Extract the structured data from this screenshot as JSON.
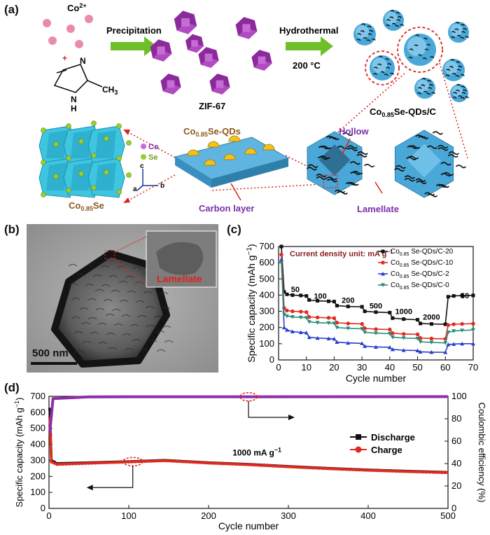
{
  "panel_a": {
    "label": "(a)",
    "co_ion": "Co2+",
    "co_base": "Co",
    "co_sup": "2+",
    "plus": "+",
    "ligand_N1": "N",
    "ligand_N2": "N",
    "ligand_H": "H",
    "ligand_CH3": "CH3",
    "ligand_CH": "CH",
    "ligand_3": "3",
    "step1": "Precipitation",
    "step2": "Hydrothermal",
    "step2_temp": "200 °C",
    "zif": "ZIF-67",
    "product_base": "Co",
    "product_sub": "0.85",
    "product_rest": "Se-QDs/C",
    "qd_base": "Co",
    "qd_sub": "0.85",
    "qd_rest": "Se-QDs",
    "hollow": "Hollow",
    "lamellate": "Lamellate",
    "carbon_layer": "Carbon layer",
    "legend_co": "Co",
    "legend_se": "Se",
    "axis_c": "c",
    "axis_a": "a",
    "axis_b": "b",
    "crystal_base": "Co",
    "crystal_sub": "0.85",
    "crystal_rest": "Se",
    "colors": {
      "purple": "#7a2fa8",
      "cyan": "#3aa7d6",
      "arrow_green": "#6fbf2a",
      "red": "#d9241b",
      "pink": "#e98bb0"
    }
  },
  "panel_b": {
    "label": "(b)",
    "inset_text": "Lamellate",
    "scale_bar": "500 nm"
  },
  "panel_c": {
    "label": "(c)",
    "annotation": "Current density unit: mA g−1",
    "annot_main": "Current density unit: mA g",
    "annot_sup": "−1",
    "rates": [
      "50",
      "100",
      "200",
      "500",
      "1000",
      "2000",
      "50"
    ],
    "legend": [
      "Co0.85 Se-QDs/C-20",
      "Co0.85 Se-QDs/C-10",
      "Co0.85 Se-QDs/C-2",
      "Co0.85 Se-QDs/C-0"
    ],
    "legend_base": "Co",
    "legend_sub": "0.85",
    "legend_rests": [
      " Se-QDs/C-20",
      " Se-QDs/C-10",
      " Se-QDs/C-2",
      " Se-QDs/C-0"
    ],
    "series_colors": [
      "#111111",
      "#e02a1f",
      "#2a3fc9",
      "#2a8c7a"
    ],
    "ylabel": "Specific capacity (mAh g−1)",
    "ylabel_main": "Specific capacity (mAh g",
    "ylabel_sup": "−1",
    "ylabel_end": ")",
    "xlabel": "Cycle number",
    "yticks": [
      "0",
      "100",
      "200",
      "300",
      "400",
      "500",
      "600",
      "700"
    ],
    "xticks": [
      "0",
      "10",
      "20",
      "30",
      "40",
      "50",
      "60",
      "70"
    ]
  },
  "panel_d": {
    "label": "(d)",
    "legend": [
      "Discharge",
      "Charge"
    ],
    "annotation": "1000 mA g−1",
    "annot_main": "1000 mA g",
    "annot_sup": "−1",
    "ylabel_left": "Specific capacity (mAh g−1)",
    "yl_main": "Specific capacity (mAh g",
    "yl_sup": "−1",
    "yl_end": ")",
    "ylabel_right": "Coulombic efficiency (%)",
    "xlabel": "Cycle number",
    "yticks_left": [
      "0",
      "100",
      "200",
      "300",
      "400",
      "500",
      "600",
      "700"
    ],
    "yticks_right": [
      "0",
      "20",
      "40",
      "60",
      "80",
      "100"
    ],
    "xticks": [
      "0",
      "100",
      "200",
      "300",
      "400",
      "500"
    ]
  },
  "chart_data": [
    {
      "type": "line",
      "panel": "c",
      "xlabel": "Cycle number",
      "ylabel": "Specific capacity (mAh g−1)",
      "xlim": [
        0,
        70
      ],
      "ylim": [
        0,
        700
      ],
      "annotation": "Current density unit: mA g−1",
      "rate_labels": [
        "50",
        "100",
        "200",
        "500",
        "1000",
        "2000",
        "50"
      ],
      "series": [
        {
          "name": "Co0.85 Se-QDs/C-20",
          "color": "#111111",
          "points": [
            [
              1,
              700
            ],
            [
              2,
              420
            ],
            [
              3,
              405
            ],
            [
              5,
              400
            ],
            [
              8,
              398
            ],
            [
              10,
              395
            ],
            [
              11,
              370
            ],
            [
              14,
              365
            ],
            [
              18,
              362
            ],
            [
              20,
              360
            ],
            [
              21,
              335
            ],
            [
              25,
              330
            ],
            [
              30,
              328
            ],
            [
              31,
              300
            ],
            [
              35,
              295
            ],
            [
              40,
              292
            ],
            [
              41,
              258
            ],
            [
              45,
              252
            ],
            [
              50,
              248
            ],
            [
              51,
              225
            ],
            [
              55,
              222
            ],
            [
              60,
              220
            ],
            [
              61,
              390
            ],
            [
              63,
              395
            ],
            [
              66,
              397
            ],
            [
              70,
              398
            ]
          ]
        },
        {
          "name": "Co0.85 Se-QDs/C-10",
          "color": "#e02a1f",
          "points": [
            [
              1,
              650
            ],
            [
              2,
              320
            ],
            [
              3,
              305
            ],
            [
              5,
              300
            ],
            [
              8,
              298
            ],
            [
              10,
              295
            ],
            [
              11,
              265
            ],
            [
              14,
              262
            ],
            [
              18,
              260
            ],
            [
              20,
              258
            ],
            [
              21,
              230
            ],
            [
              25,
              225
            ],
            [
              30,
              222
            ],
            [
              31,
              195
            ],
            [
              35,
              190
            ],
            [
              40,
              188
            ],
            [
              41,
              165
            ],
            [
              45,
              160
            ],
            [
              50,
              158
            ],
            [
              51,
              135
            ],
            [
              55,
              132
            ],
            [
              60,
              130
            ],
            [
              61,
              215
            ],
            [
              63,
              220
            ],
            [
              66,
              222
            ],
            [
              70,
              224
            ]
          ]
        },
        {
          "name": "Co0.85 Se-QDs/C-2",
          "color": "#2a3fc9",
          "points": [
            [
              1,
              620
            ],
            [
              2,
              200
            ],
            [
              3,
              185
            ],
            [
              5,
              175
            ],
            [
              8,
              170
            ],
            [
              10,
              168
            ],
            [
              11,
              140
            ],
            [
              14,
              135
            ],
            [
              18,
              132
            ],
            [
              20,
              130
            ],
            [
              21,
              110
            ],
            [
              25,
              105
            ],
            [
              30,
              102
            ],
            [
              31,
              85
            ],
            [
              35,
              80
            ],
            [
              40,
              78
            ],
            [
              41,
              65
            ],
            [
              45,
              60
            ],
            [
              50,
              58
            ],
            [
              51,
              50
            ],
            [
              55,
              48
            ],
            [
              60,
              47
            ],
            [
              61,
              95
            ],
            [
              63,
              98
            ],
            [
              66,
              100
            ],
            [
              70,
              100
            ]
          ]
        },
        {
          "name": "Co0.85 Se-QDs/C-0",
          "color": "#2a8c7a",
          "points": [
            [
              1,
              600
            ],
            [
              2,
              280
            ],
            [
              3,
              270
            ],
            [
              5,
              265
            ],
            [
              8,
              262
            ],
            [
              10,
              260
            ],
            [
              11,
              235
            ],
            [
              14,
              230
            ],
            [
              18,
              228
            ],
            [
              20,
              226
            ],
            [
              21,
              200
            ],
            [
              25,
              195
            ],
            [
              30,
              192
            ],
            [
              31,
              170
            ],
            [
              35,
              165
            ],
            [
              40,
              162
            ],
            [
              41,
              140
            ],
            [
              45,
              135
            ],
            [
              50,
              132
            ],
            [
              51,
              112
            ],
            [
              55,
              108
            ],
            [
              60,
              105
            ],
            [
              61,
              170
            ],
            [
              63,
              178
            ],
            [
              66,
              182
            ],
            [
              70,
              185
            ]
          ]
        }
      ]
    },
    {
      "type": "line",
      "panel": "d",
      "xlabel": "Cycle number",
      "ylabel": "Specific capacity (mAh g−1)",
      "y2label": "Coulombic efficiency (%)",
      "xlim": [
        0,
        500
      ],
      "ylim": [
        0,
        700
      ],
      "y2lim": [
        0,
        100
      ],
      "annotation": "1000 mA g−1",
      "series": [
        {
          "name": "Discharge",
          "color": "#111111",
          "points": [
            [
              1,
              620
            ],
            [
              3,
              300
            ],
            [
              10,
              280
            ],
            [
              50,
              285
            ],
            [
              100,
              292
            ],
            [
              145,
              300
            ],
            [
              200,
              285
            ],
            [
              250,
              275
            ],
            [
              300,
              262
            ],
            [
              350,
              250
            ],
            [
              400,
              240
            ],
            [
              450,
              232
            ],
            [
              500,
              225
            ]
          ]
        },
        {
          "name": "Charge",
          "color": "#e02a1f",
          "points": [
            [
              1,
              560
            ],
            [
              3,
              290
            ],
            [
              10,
              275
            ],
            [
              50,
              282
            ],
            [
              100,
              290
            ],
            [
              145,
              298
            ],
            [
              200,
              283
            ],
            [
              250,
              273
            ],
            [
              300,
              260
            ],
            [
              350,
              248
            ],
            [
              400,
              238
            ],
            [
              450,
              230
            ],
            [
              500,
              223
            ]
          ]
        },
        {
          "name": "Coulombic efficiency",
          "axis": "right",
          "color": "#8e2fa8",
          "points": [
            [
              1,
              68
            ],
            [
              5,
              98
            ],
            [
              50,
              99.5
            ],
            [
              100,
              99.6
            ],
            [
              250,
              99.6
            ],
            [
              400,
              99.7
            ],
            [
              500,
              99.8
            ]
          ]
        }
      ]
    }
  ]
}
